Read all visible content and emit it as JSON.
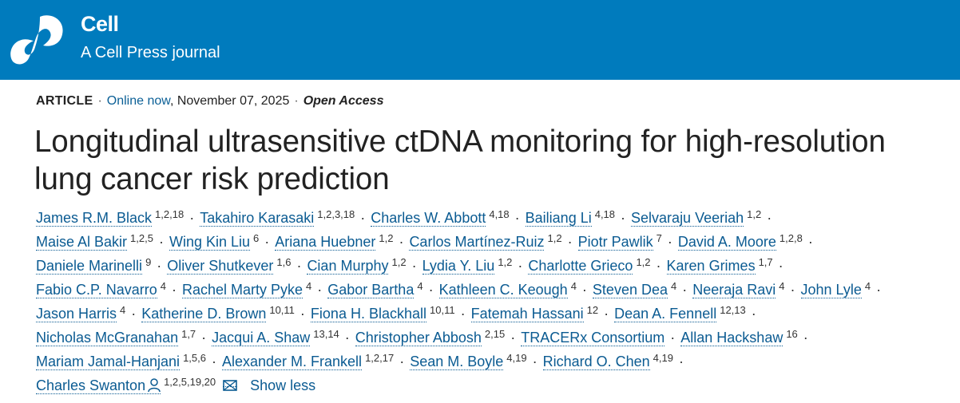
{
  "header": {
    "journal_name": "Cell",
    "journal_subtitle": "A Cell Press journal",
    "brand_color": "#007bbd",
    "logo_icon": "cell-press-logo-icon"
  },
  "meta": {
    "article_type": "ARTICLE",
    "online_label": "Online now",
    "date": ", November 07, 2025",
    "access": "Open Access",
    "separator": "·"
  },
  "title": "Longitudinal ultrasensitive ctDNA monitoring for high-resolution lung cancer risk prediction",
  "authors_rows": [
    [
      {
        "name": "James R.M. Black",
        "aff": "1,2,18"
      },
      {
        "name": "Takahiro Karasaki",
        "aff": "1,2,3,18"
      },
      {
        "name": "Charles W. Abbott",
        "aff": "4,18"
      },
      {
        "name": "Bailiang Li",
        "aff": "4,18"
      },
      {
        "name": "Selvaraju Veeriah",
        "aff": "1,2"
      }
    ],
    [
      {
        "name": "Maise Al Bakir",
        "aff": "1,2,5"
      },
      {
        "name": "Wing Kin Liu",
        "aff": "6"
      },
      {
        "name": "Ariana Huebner",
        "aff": "1,2"
      },
      {
        "name": "Carlos Martínez-Ruiz",
        "aff": "1,2"
      },
      {
        "name": "Piotr Pawlik",
        "aff": "7"
      },
      {
        "name": "David A. Moore",
        "aff": "1,2,8"
      }
    ],
    [
      {
        "name": "Daniele Marinelli",
        "aff": "9"
      },
      {
        "name": "Oliver Shutkever",
        "aff": "1,6"
      },
      {
        "name": "Cian Murphy",
        "aff": "1,2"
      },
      {
        "name": "Lydia Y. Liu",
        "aff": "1,2"
      },
      {
        "name": "Charlotte Grieco",
        "aff": "1,2"
      },
      {
        "name": "Karen Grimes",
        "aff": "1,7"
      }
    ],
    [
      {
        "name": "Fabio C.P. Navarro",
        "aff": "4"
      },
      {
        "name": "Rachel Marty Pyke",
        "aff": "4"
      },
      {
        "name": "Gabor Bartha",
        "aff": "4"
      },
      {
        "name": "Kathleen C. Keough",
        "aff": "4"
      },
      {
        "name": "Steven Dea",
        "aff": "4"
      },
      {
        "name": "Neeraja Ravi",
        "aff": "4"
      },
      {
        "name": "John Lyle",
        "aff": "4"
      }
    ],
    [
      {
        "name": "Jason Harris",
        "aff": "4"
      },
      {
        "name": "Katherine D. Brown",
        "aff": "10,11"
      },
      {
        "name": "Fiona H. Blackhall",
        "aff": "10,11"
      },
      {
        "name": "Fatemah Hassani",
        "aff": "12"
      },
      {
        "name": "Dean A. Fennell",
        "aff": "12,13"
      }
    ],
    [
      {
        "name": "Nicholas McGranahan",
        "aff": "1,7"
      },
      {
        "name": "Jacqui A. Shaw",
        "aff": "13,14"
      },
      {
        "name": "Christopher Abbosh",
        "aff": "2,15"
      },
      {
        "name": "TRACERx Consortium",
        "aff": ""
      },
      {
        "name": "Allan Hackshaw",
        "aff": "16"
      }
    ],
    [
      {
        "name": "Mariam Jamal-Hanjani",
        "aff": "1,5,6"
      },
      {
        "name": "Alexander M. Frankell",
        "aff": "1,2,17"
      },
      {
        "name": "Sean M. Boyle",
        "aff": "4,19"
      },
      {
        "name": "Richard O. Chen",
        "aff": "4,19"
      }
    ]
  ],
  "corresponding_author": {
    "name": "Charles Swanton",
    "aff": "1,2,5,19,20",
    "icon": "person-icon",
    "email_icon": "envelope-icon"
  },
  "author_separator": "·",
  "show_less_label": "Show less",
  "link_color": "#0b5b92"
}
